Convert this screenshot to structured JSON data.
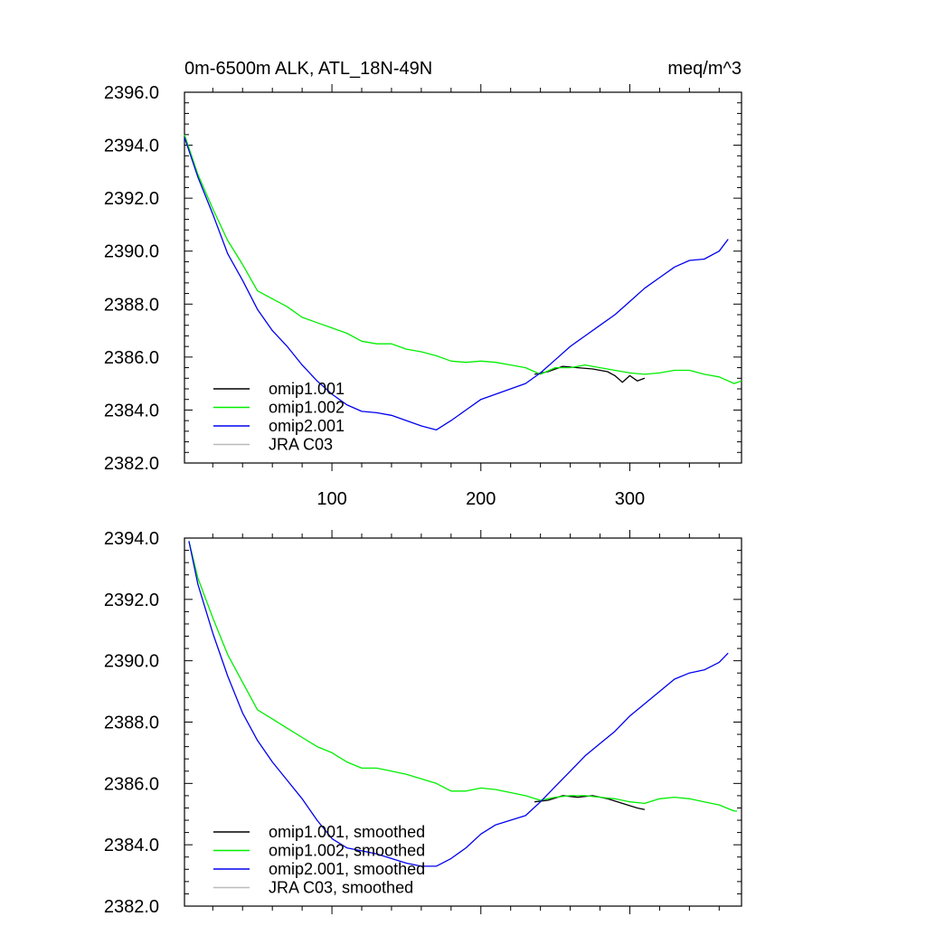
{
  "chart_data": [
    {
      "type": "line",
      "title": "0m-6500m ALK, ATL_18N-49N",
      "units": "meq/m^3",
      "xlim": [
        1,
        375
      ],
      "ylim": [
        2382.0,
        2396.0
      ],
      "x_ticks": [
        100,
        200,
        300
      ],
      "x_tick_labels": [
        "100",
        "200",
        "300"
      ],
      "y_ticks": [
        2382.0,
        2384.0,
        2386.0,
        2388.0,
        2390.0,
        2392.0,
        2394.0,
        2396.0
      ],
      "y_tick_labels": [
        "2382.0",
        "2384.0",
        "2386.0",
        "2388.0",
        "2390.0",
        "2392.0",
        "2394.0",
        "2396.0"
      ],
      "grid": false,
      "legend_position": "bottom-left",
      "series": [
        {
          "name": "omip1.001",
          "color": "#000000",
          "x": [
            236,
            245,
            255,
            265,
            275,
            285,
            290,
            295,
            300,
            305,
            310
          ],
          "y": [
            2385.35,
            2385.45,
            2385.65,
            2385.6,
            2385.55,
            2385.45,
            2385.3,
            2385.05,
            2385.3,
            2385.1,
            2385.2
          ]
        },
        {
          "name": "omip1.002",
          "color": "#00ee00",
          "x": [
            1,
            10,
            20,
            30,
            40,
            50,
            60,
            70,
            80,
            90,
            100,
            110,
            120,
            130,
            140,
            150,
            160,
            170,
            180,
            190,
            200,
            210,
            220,
            230,
            240,
            250,
            260,
            270,
            280,
            290,
            300,
            310,
            320,
            330,
            340,
            350,
            360,
            370,
            375
          ],
          "y": [
            2394.4,
            2392.9,
            2391.6,
            2390.4,
            2389.5,
            2388.5,
            2388.2,
            2387.9,
            2387.5,
            2387.3,
            2387.1,
            2386.9,
            2386.6,
            2386.5,
            2386.5,
            2386.3,
            2386.2,
            2386.05,
            2385.85,
            2385.8,
            2385.85,
            2385.8,
            2385.7,
            2385.6,
            2385.35,
            2385.6,
            2385.6,
            2385.7,
            2385.6,
            2385.5,
            2385.4,
            2385.35,
            2385.4,
            2385.5,
            2385.5,
            2385.35,
            2385.25,
            2385.0,
            2385.1
          ]
        },
        {
          "name": "omip2.001",
          "color": "#0000ee",
          "x": [
            1,
            10,
            20,
            30,
            40,
            50,
            60,
            70,
            80,
            90,
            100,
            110,
            120,
            130,
            140,
            150,
            160,
            170,
            180,
            190,
            200,
            210,
            220,
            230,
            240,
            250,
            260,
            270,
            280,
            290,
            300,
            310,
            320,
            330,
            340,
            350,
            360,
            366
          ],
          "y": [
            2394.3,
            2392.8,
            2391.4,
            2389.9,
            2388.9,
            2387.8,
            2387.0,
            2386.4,
            2385.7,
            2385.1,
            2384.6,
            2384.2,
            2383.95,
            2383.9,
            2383.8,
            2383.6,
            2383.4,
            2383.25,
            2383.6,
            2384.0,
            2384.4,
            2384.6,
            2384.8,
            2385.0,
            2385.4,
            2385.9,
            2386.4,
            2386.8,
            2387.2,
            2387.6,
            2388.1,
            2388.6,
            2389.0,
            2389.4,
            2389.65,
            2389.7,
            2390.0,
            2390.45
          ]
        },
        {
          "name": "JRA C03",
          "color": "#bbbbbb",
          "x": [],
          "y": []
        }
      ]
    },
    {
      "type": "line",
      "xlim": [
        1,
        375
      ],
      "ylim": [
        2382.0,
        2394.0
      ],
      "x_ticks": [
        100,
        200,
        300
      ],
      "x_tick_labels": [],
      "y_ticks": [
        2382.0,
        2384.0,
        2386.0,
        2388.0,
        2390.0,
        2392.0,
        2394.0
      ],
      "y_tick_labels": [
        "2382.0",
        "2384.0",
        "2386.0",
        "2388.0",
        "2390.0",
        "2392.0",
        "2394.0"
      ],
      "grid": false,
      "legend_position": "bottom-left",
      "series": [
        {
          "name": "omip1.001, smoothed",
          "color": "#000000",
          "x": [
            236,
            245,
            255,
            265,
            275,
            285,
            295,
            305,
            310
          ],
          "y": [
            2385.4,
            2385.45,
            2385.6,
            2385.55,
            2385.6,
            2385.5,
            2385.35,
            2385.2,
            2385.15
          ]
        },
        {
          "name": "omip1.002, smoothed",
          "color": "#00ee00",
          "x": [
            4,
            10,
            20,
            30,
            40,
            50,
            60,
            70,
            80,
            90,
            100,
            110,
            120,
            130,
            140,
            150,
            160,
            170,
            180,
            190,
            200,
            210,
            220,
            230,
            240,
            250,
            260,
            270,
            280,
            290,
            300,
            310,
            320,
            330,
            340,
            350,
            360,
            370,
            372
          ],
          "y": [
            2393.9,
            2392.7,
            2391.4,
            2390.2,
            2389.3,
            2388.4,
            2388.1,
            2387.8,
            2387.5,
            2387.2,
            2387.0,
            2386.7,
            2386.5,
            2386.5,
            2386.4,
            2386.3,
            2386.15,
            2386.0,
            2385.75,
            2385.75,
            2385.85,
            2385.8,
            2385.7,
            2385.6,
            2385.45,
            2385.55,
            2385.6,
            2385.6,
            2385.55,
            2385.5,
            2385.4,
            2385.35,
            2385.5,
            2385.55,
            2385.5,
            2385.4,
            2385.3,
            2385.1,
            2385.1
          ]
        },
        {
          "name": "omip2.001, smoothed",
          "color": "#0000ee",
          "x": [
            4,
            10,
            20,
            30,
            40,
            50,
            60,
            70,
            80,
            90,
            100,
            110,
            120,
            130,
            140,
            150,
            160,
            170,
            180,
            190,
            200,
            210,
            220,
            230,
            240,
            250,
            260,
            270,
            280,
            290,
            300,
            310,
            320,
            330,
            340,
            350,
            360,
            366
          ],
          "y": [
            2393.9,
            2392.5,
            2390.9,
            2389.5,
            2388.3,
            2387.4,
            2386.7,
            2386.1,
            2385.5,
            2384.8,
            2384.2,
            2383.9,
            2383.8,
            2383.7,
            2383.55,
            2383.4,
            2383.3,
            2383.3,
            2383.55,
            2383.9,
            2384.35,
            2384.65,
            2384.8,
            2384.95,
            2385.4,
            2385.9,
            2386.4,
            2386.9,
            2387.3,
            2387.7,
            2388.2,
            2388.6,
            2389.0,
            2389.4,
            2389.6,
            2389.7,
            2389.95,
            2390.25
          ]
        },
        {
          "name": "JRA C03, smoothed",
          "color": "#bbbbbb",
          "x": [],
          "y": []
        }
      ]
    }
  ]
}
